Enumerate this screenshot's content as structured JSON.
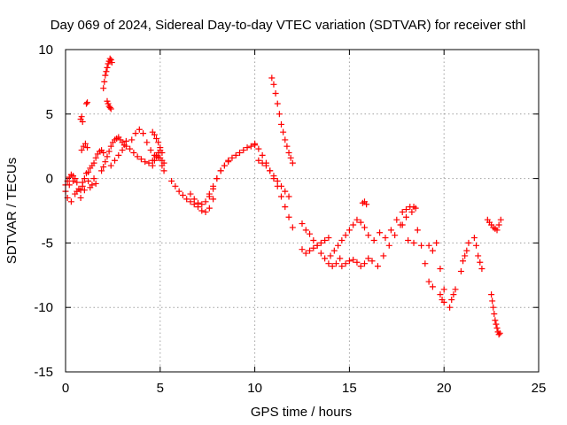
{
  "chart_data": {
    "type": "scatter",
    "title": "Day 069 of 2024, Sidereal Day-to-day VTEC variation (SDTVAR) for receiver sthl",
    "xlabel": "GPS time / hours",
    "ylabel": "SDTVAR / TECUs",
    "xlim": [
      0,
      25
    ],
    "ylim": [
      -15,
      10
    ],
    "xticks": [
      0,
      5,
      10,
      15,
      20,
      25
    ],
    "yticks": [
      -15,
      -10,
      -5,
      0,
      5,
      10
    ],
    "grid": true,
    "marker": "+",
    "color": "#ff0000",
    "series": [
      {
        "name": "seg-start-a",
        "x": [
          0.0,
          0.1,
          0.2,
          0.3,
          0.4,
          0.5,
          0.6,
          0.7,
          0.8,
          0.9,
          1.0
        ],
        "y": [
          -1.0,
          -1.5,
          -0.5,
          -1.8,
          -0.2,
          -1.2,
          -1.0,
          -0.8,
          -1.5,
          -0.6,
          -0.9
        ]
      },
      {
        "name": "seg-start-b",
        "x": [
          0.0,
          0.1,
          0.2,
          0.3,
          0.4,
          0.5,
          0.6
        ],
        "y": [
          -0.5,
          -0.2,
          0.1,
          0.3,
          0.2,
          0.0,
          -0.3
        ]
      },
      {
        "name": "seg-early-c",
        "x": [
          0.8,
          0.9,
          1.0,
          1.1,
          1.2,
          1.3,
          1.4,
          1.5,
          1.6
        ],
        "y": [
          -0.9,
          -0.3,
          0.0,
          0.4,
          -0.2,
          -0.7,
          -0.5,
          0.0,
          -0.4
        ]
      },
      {
        "name": "seg-early-d",
        "x": [
          0.8,
          0.85,
          0.9
        ],
        "y": [
          4.6,
          4.8,
          4.4
        ]
      },
      {
        "name": "seg-early-e",
        "x": [
          1.1,
          1.15
        ],
        "y": [
          5.8,
          5.9
        ]
      },
      {
        "name": "seg-early-f",
        "x": [
          0.85,
          0.95,
          1.05,
          1.15
        ],
        "y": [
          2.2,
          2.5,
          2.7,
          2.4
        ]
      },
      {
        "name": "seg-early-g",
        "x": [
          1.2,
          1.3,
          1.4,
          1.5,
          1.6,
          1.7,
          1.8,
          1.9,
          2.0
        ],
        "y": [
          0.5,
          0.8,
          1.0,
          1.2,
          1.6,
          1.9,
          2.1,
          2.2,
          2.0
        ]
      },
      {
        "name": "seg-peak",
        "x": [
          2.0,
          2.05,
          2.1,
          2.15,
          2.2,
          2.25,
          2.3,
          2.35,
          2.4,
          2.45
        ],
        "y": [
          7.0,
          7.5,
          8.0,
          8.3,
          8.6,
          8.9,
          9.1,
          9.3,
          9.2,
          9.0
        ]
      },
      {
        "name": "seg-peak-drop",
        "x": [
          2.2,
          2.25,
          2.3,
          2.35,
          2.4
        ],
        "y": [
          6.0,
          5.8,
          5.6,
          5.5,
          5.4
        ]
      },
      {
        "name": "seg-rise",
        "x": [
          1.9,
          2.0,
          2.1,
          2.2,
          2.3,
          2.4,
          2.5,
          2.6,
          2.7,
          2.8,
          2.9,
          3.0,
          3.1,
          3.2
        ],
        "y": [
          0.6,
          0.9,
          1.3,
          1.7,
          2.1,
          2.5,
          2.8,
          3.0,
          3.1,
          3.2,
          3.0,
          2.8,
          2.6,
          2.9
        ]
      },
      {
        "name": "seg-wave-1",
        "x": [
          2.4,
          2.6,
          2.8,
          3.0,
          3.2,
          3.4,
          3.6,
          3.8,
          4.0,
          4.2,
          4.4,
          4.6,
          4.8,
          5.0
        ],
        "y": [
          1.0,
          1.4,
          1.8,
          2.2,
          2.5,
          2.3,
          2.0,
          1.7,
          1.5,
          1.3,
          1.2,
          1.4,
          1.8,
          2.2
        ]
      },
      {
        "name": "seg-wave-2",
        "x": [
          3.5,
          3.7,
          3.9,
          4.1,
          4.3,
          4.5,
          4.7,
          4.9,
          5.1
        ],
        "y": [
          3.0,
          3.5,
          3.8,
          3.5,
          2.8,
          2.2,
          1.8,
          1.6,
          1.4
        ]
      },
      {
        "name": "seg-hump",
        "x": [
          4.6,
          4.7,
          4.8,
          4.9,
          5.0,
          5.1,
          5.2
        ],
        "y": [
          3.6,
          3.4,
          3.1,
          2.8,
          2.4,
          2.0,
          1.2
        ]
      },
      {
        "name": "seg-hump-b",
        "x": [
          4.6,
          4.7,
          4.8,
          4.9,
          5.0,
          5.1,
          5.2
        ],
        "y": [
          1.0,
          1.4,
          1.7,
          2.0,
          1.6,
          1.0,
          0.6
        ]
      },
      {
        "name": "seg-trough",
        "x": [
          5.6,
          5.8,
          6.0,
          6.2,
          6.4,
          6.6,
          6.8,
          7.0,
          7.2,
          7.4,
          7.6,
          7.8
        ],
        "y": [
          -0.2,
          -0.6,
          -1.0,
          -1.3,
          -1.6,
          -1.8,
          -2.0,
          -2.2,
          -2.5,
          -2.6,
          -2.3,
          -1.6
        ]
      },
      {
        "name": "seg-trough-b",
        "x": [
          6.6,
          6.8,
          7.0,
          7.2,
          7.4,
          7.6,
          7.8,
          8.0,
          8.2,
          8.4,
          8.6
        ],
        "y": [
          -1.2,
          -1.6,
          -1.9,
          -2.0,
          -1.8,
          -1.4,
          -0.8,
          0.0,
          0.6,
          1.0,
          1.4
        ]
      },
      {
        "name": "seg-trough-c",
        "x": [
          7.6,
          7.8,
          8.0,
          8.2,
          8.4,
          8.6,
          8.8,
          9.0,
          9.2,
          9.4,
          9.6,
          9.8,
          10.0
        ],
        "y": [
          -1.2,
          -0.6,
          0.0,
          0.6,
          1.0,
          1.3,
          1.6,
          1.8,
          2.0,
          2.2,
          2.4,
          2.5,
          2.7
        ]
      },
      {
        "name": "seg-big-drop",
        "x": [
          10.0,
          10.2,
          10.4,
          10.6,
          10.8,
          11.0,
          11.2,
          11.4,
          11.6,
          11.8,
          12.0
        ],
        "y": [
          2.6,
          2.3,
          1.8,
          1.2,
          0.6,
          0.0,
          -0.6,
          -1.4,
          -2.2,
          -3.0,
          -3.8
        ]
      },
      {
        "name": "seg-drop-b",
        "x": [
          10.2,
          10.4,
          10.6,
          10.8,
          11.0,
          11.2,
          11.4,
          11.6,
          11.8
        ],
        "y": [
          1.4,
          1.2,
          1.0,
          0.6,
          0.2,
          -0.2,
          -0.6,
          -1.0,
          -1.4
        ]
      },
      {
        "name": "seg-spike",
        "x": [
          10.9,
          11.0,
          11.1,
          11.2,
          11.3,
          11.4,
          11.5,
          11.6,
          11.7,
          11.8,
          11.9,
          12.0
        ],
        "y": [
          7.8,
          7.3,
          6.6,
          5.8,
          5.0,
          4.2,
          3.6,
          3.0,
          2.5,
          2.0,
          1.6,
          1.2
        ]
      },
      {
        "name": "seg-low-1",
        "x": [
          12.5,
          12.7,
          12.9,
          13.1,
          13.3,
          13.5,
          13.7,
          13.9,
          14.1,
          14.3,
          14.5
        ],
        "y": [
          -3.5,
          -4.0,
          -4.3,
          -4.8,
          -5.2,
          -5.8,
          -6.2,
          -6.6,
          -6.8,
          -6.6,
          -6.2
        ]
      },
      {
        "name": "seg-low-2",
        "x": [
          12.5,
          12.7,
          12.9,
          13.1,
          13.3,
          13.5,
          13.7,
          13.9
        ],
        "y": [
          -5.5,
          -5.8,
          -5.6,
          -5.4,
          -5.2,
          -5.0,
          -4.8,
          -4.6
        ]
      },
      {
        "name": "seg-low-3",
        "x": [
          14.0,
          14.2,
          14.4,
          14.6,
          14.8,
          15.0,
          15.2,
          15.4,
          15.6,
          15.8
        ],
        "y": [
          -6.0,
          -5.6,
          -5.2,
          -4.8,
          -4.4,
          -4.0,
          -3.6,
          -3.2,
          -3.4,
          -3.8
        ]
      },
      {
        "name": "seg-low-4",
        "x": [
          14.6,
          14.8,
          15.0,
          15.2,
          15.4,
          15.6,
          15.8,
          16.0
        ],
        "y": [
          -6.8,
          -6.6,
          -6.4,
          -6.3,
          -6.5,
          -6.8,
          -6.6,
          -6.2
        ]
      },
      {
        "name": "seg-low-5",
        "x": [
          15.7,
          15.8,
          15.9
        ],
        "y": [
          -1.9,
          -1.8,
          -2.0
        ]
      },
      {
        "name": "seg-low-6",
        "x": [
          16.0,
          16.3,
          16.6,
          16.9,
          17.2,
          17.5,
          17.8,
          18.1,
          18.4
        ],
        "y": [
          -4.4,
          -4.8,
          -4.2,
          -4.6,
          -4.0,
          -3.2,
          -3.6,
          -4.8,
          -5.0
        ]
      },
      {
        "name": "seg-low-7",
        "x": [
          16.2,
          16.5,
          16.8,
          17.1,
          17.4,
          17.7,
          18.0,
          18.3
        ],
        "y": [
          -6.4,
          -6.8,
          -6.0,
          -5.2,
          -4.4,
          -3.6,
          -3.0,
          -2.6
        ]
      },
      {
        "name": "seg-low-8",
        "x": [
          17.8,
          18.0,
          18.2,
          18.4,
          18.5
        ],
        "y": [
          -2.6,
          -2.4,
          -2.2,
          -2.2,
          -2.3
        ]
      },
      {
        "name": "seg-low-9",
        "x": [
          18.6,
          18.8,
          19.0,
          19.2,
          19.4
        ],
        "y": [
          -4.0,
          -5.2,
          -6.6,
          -8.0,
          -8.4
        ]
      },
      {
        "name": "seg-low-10",
        "x": [
          19.2,
          19.4,
          19.6,
          19.8,
          20.0
        ],
        "y": [
          -5.2,
          -5.6,
          -5.0,
          -7.0,
          -8.6
        ]
      },
      {
        "name": "seg-low-11",
        "x": [
          19.8,
          19.9,
          20.0
        ],
        "y": [
          -9.0,
          -9.4,
          -9.6
        ]
      },
      {
        "name": "seg-low-12",
        "x": [
          20.3,
          20.4,
          20.5,
          20.6
        ],
        "y": [
          -10.0,
          -9.4,
          -9.0,
          -8.6
        ]
      },
      {
        "name": "seg-low-13",
        "x": [
          20.9,
          21.0,
          21.1,
          21.2,
          21.3
        ],
        "y": [
          -7.2,
          -6.4,
          -6.0,
          -5.6,
          -5.0
        ]
      },
      {
        "name": "seg-low-14",
        "x": [
          21.6,
          21.7,
          21.8,
          21.9,
          22.0
        ],
        "y": [
          -4.6,
          -5.2,
          -6.0,
          -6.5,
          -7.0
        ]
      },
      {
        "name": "seg-low-15",
        "x": [
          22.3,
          22.4,
          22.5,
          22.6,
          22.7,
          22.8,
          22.9,
          23.0
        ],
        "y": [
          -3.2,
          -3.4,
          -3.6,
          -3.8,
          -3.9,
          -4.0,
          -3.6,
          -3.2
        ]
      },
      {
        "name": "seg-end",
        "x": [
          22.5,
          22.55,
          22.6,
          22.65,
          22.7,
          22.75,
          22.8,
          22.85,
          22.9,
          22.95
        ],
        "y": [
          -9.0,
          -9.5,
          -10.0,
          -10.5,
          -11.0,
          -11.3,
          -11.6,
          -11.9,
          -12.1,
          -12.0
        ]
      }
    ]
  }
}
